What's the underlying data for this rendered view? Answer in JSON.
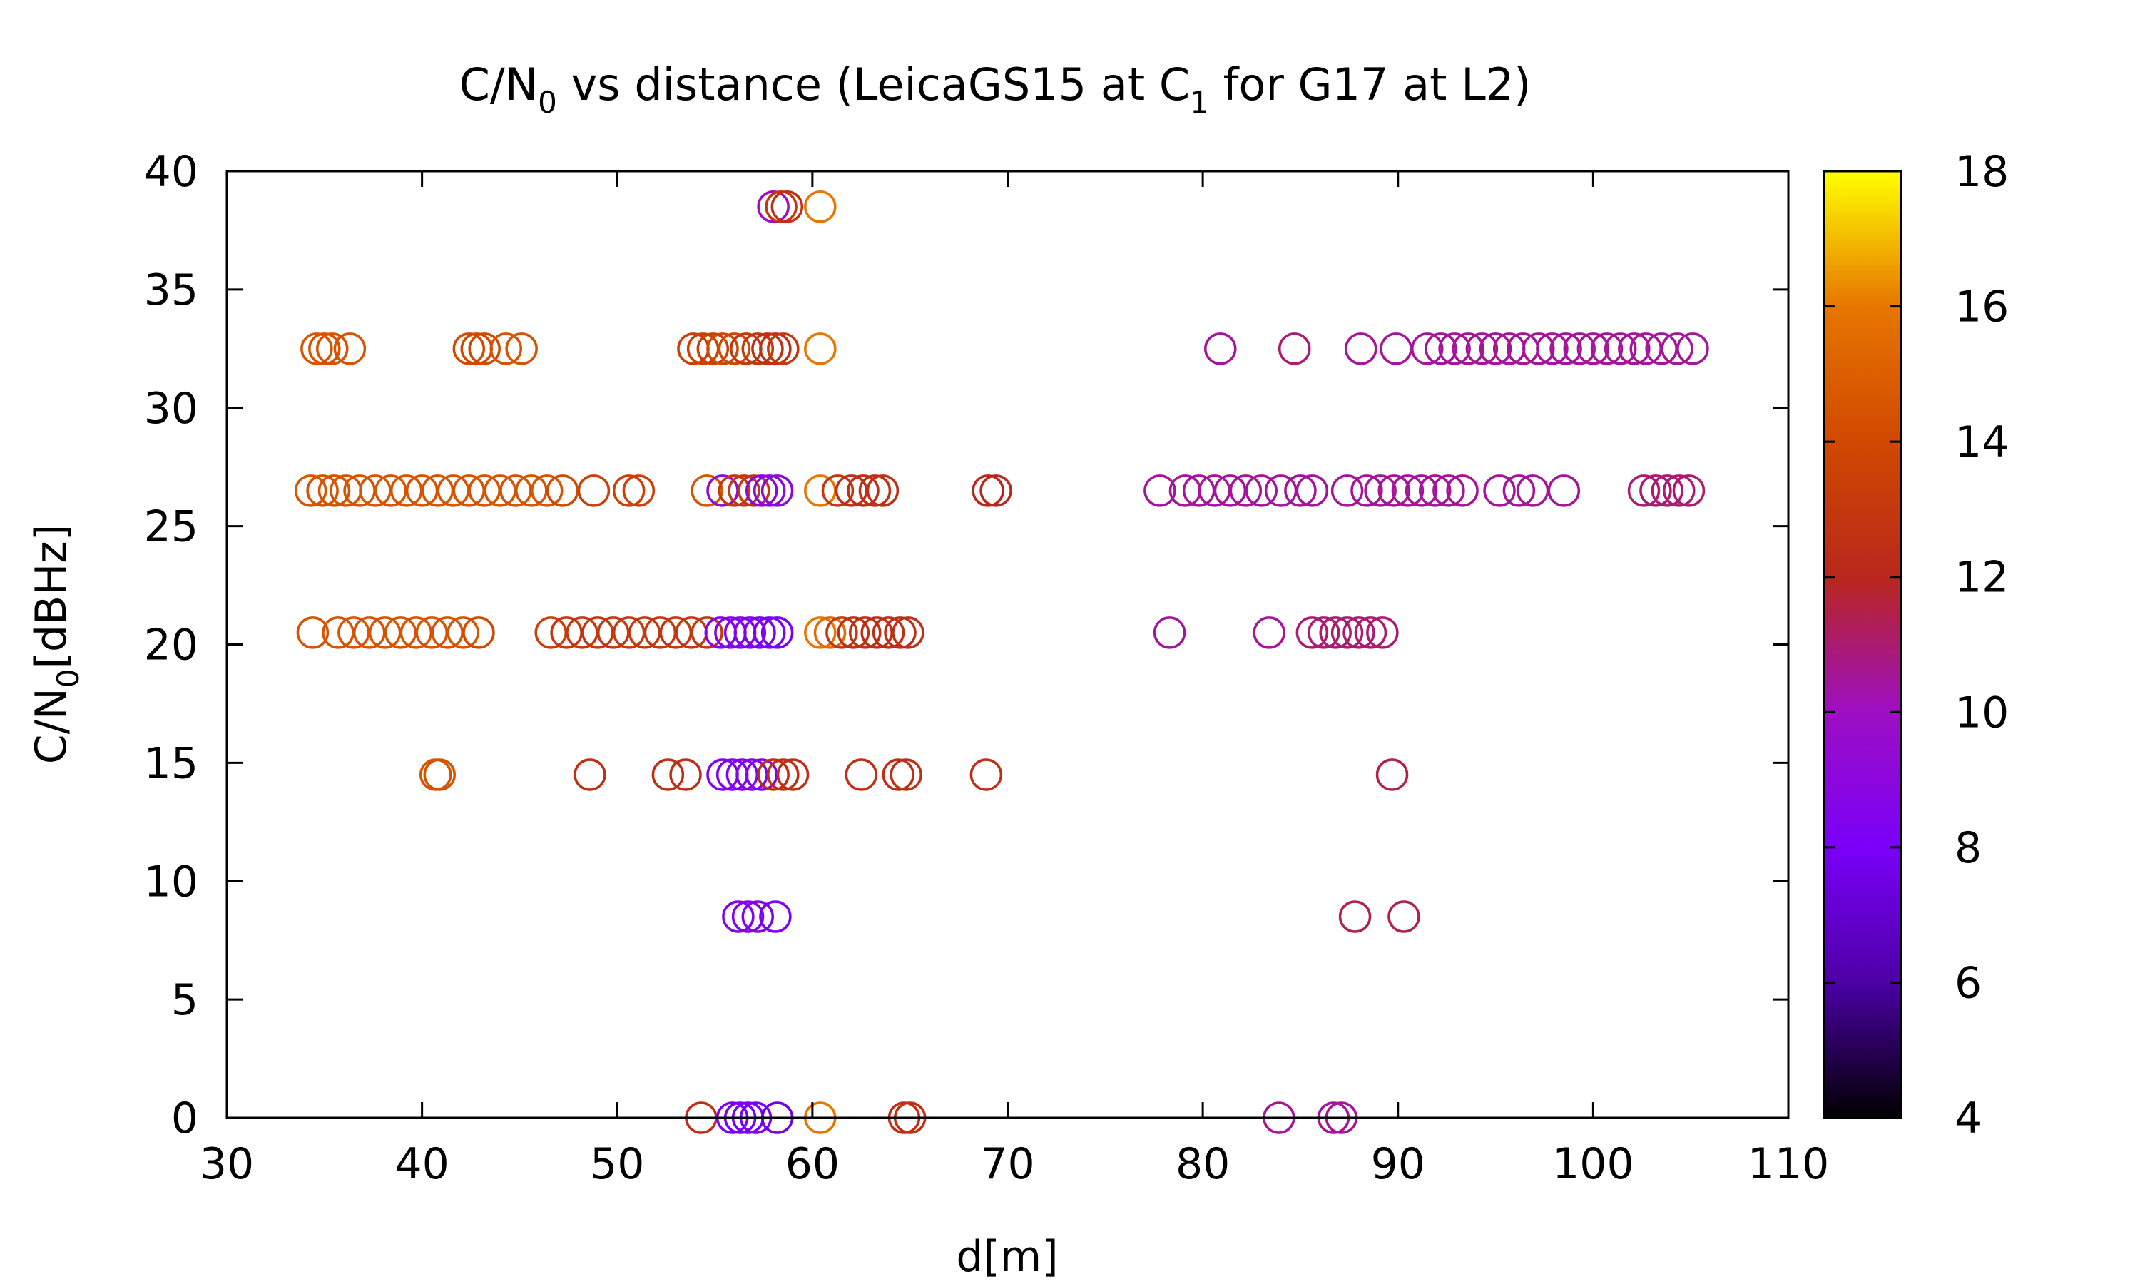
{
  "chart_data": {
    "type": "scatter",
    "title": {
      "pre": "C/N",
      "sub1": "0",
      "mid": " vs distance (LeicaGS15 at C",
      "sub2": "1",
      "post": " for G17 at L2)"
    },
    "xlabel": "d[m]",
    "ylabel": {
      "pre": "C/N",
      "sub": "0",
      "post": "[dBHz]"
    },
    "xlim": [
      30,
      110
    ],
    "ylim": [
      0,
      40
    ],
    "x_ticks": [
      "30",
      "40",
      "50",
      "60",
      "70",
      "80",
      "90",
      "100",
      "110"
    ],
    "y_ticks": [
      "0",
      "5",
      "10",
      "15",
      "20",
      "25",
      "30",
      "35",
      "40"
    ],
    "colorbar": {
      "range": [
        4,
        18
      ],
      "ticks": [
        "4",
        "6",
        "8",
        "10",
        "12",
        "14",
        "16",
        "18"
      ]
    },
    "marker": "open-circle",
    "grid": false,
    "points": [
      {
        "x": 58.0,
        "y": 38.5,
        "c": 10.0
      },
      {
        "x": 58.4,
        "y": 38.5,
        "c": 13.0
      },
      {
        "x": 58.7,
        "y": 38.5,
        "c": 12.5
      },
      {
        "x": 60.4,
        "y": 38.5,
        "c": 16.0
      },
      {
        "x": 34.6,
        "y": 32.5,
        "c": 14.5
      },
      {
        "x": 35.0,
        "y": 32.5,
        "c": 14.5
      },
      {
        "x": 35.4,
        "y": 32.5,
        "c": 14.5
      },
      {
        "x": 36.3,
        "y": 32.5,
        "c": 14.5
      },
      {
        "x": 42.4,
        "y": 32.5,
        "c": 14.0
      },
      {
        "x": 42.8,
        "y": 32.5,
        "c": 14.0
      },
      {
        "x": 43.2,
        "y": 32.5,
        "c": 14.0
      },
      {
        "x": 44.3,
        "y": 32.5,
        "c": 14.5
      },
      {
        "x": 45.1,
        "y": 32.5,
        "c": 14.5
      },
      {
        "x": 53.9,
        "y": 32.5,
        "c": 13.5
      },
      {
        "x": 54.4,
        "y": 32.5,
        "c": 13.5
      },
      {
        "x": 54.9,
        "y": 32.5,
        "c": 13.5
      },
      {
        "x": 55.4,
        "y": 32.5,
        "c": 14.0
      },
      {
        "x": 56.0,
        "y": 32.5,
        "c": 14.0
      },
      {
        "x": 56.6,
        "y": 32.5,
        "c": 13.0
      },
      {
        "x": 57.2,
        "y": 32.5,
        "c": 13.0
      },
      {
        "x": 57.7,
        "y": 32.5,
        "c": 12.5
      },
      {
        "x": 58.1,
        "y": 32.5,
        "c": 12.5
      },
      {
        "x": 58.5,
        "y": 32.5,
        "c": 13.0
      },
      {
        "x": 60.4,
        "y": 32.5,
        "c": 16.0
      },
      {
        "x": 80.9,
        "y": 32.5,
        "c": 10.5
      },
      {
        "x": 84.7,
        "y": 32.5,
        "c": 11.0
      },
      {
        "x": 88.1,
        "y": 32.5,
        "c": 10.5
      },
      {
        "x": 89.9,
        "y": 32.5,
        "c": 10.5
      },
      {
        "x": 91.5,
        "y": 32.5,
        "c": 10.5
      },
      {
        "x": 92.2,
        "y": 32.5,
        "c": 10.5
      },
      {
        "x": 92.9,
        "y": 32.5,
        "c": 10.5
      },
      {
        "x": 93.6,
        "y": 32.5,
        "c": 10.5
      },
      {
        "x": 94.3,
        "y": 32.5,
        "c": 10.5
      },
      {
        "x": 95.0,
        "y": 32.5,
        "c": 10.5
      },
      {
        "x": 95.7,
        "y": 32.5,
        "c": 10.5
      },
      {
        "x": 96.4,
        "y": 32.5,
        "c": 10.5
      },
      {
        "x": 97.2,
        "y": 32.5,
        "c": 10.5
      },
      {
        "x": 97.9,
        "y": 32.5,
        "c": 10.5
      },
      {
        "x": 98.6,
        "y": 32.5,
        "c": 10.5
      },
      {
        "x": 99.3,
        "y": 32.5,
        "c": 10.5
      },
      {
        "x": 100.0,
        "y": 32.5,
        "c": 10.5
      },
      {
        "x": 100.7,
        "y": 32.5,
        "c": 10.5
      },
      {
        "x": 101.4,
        "y": 32.5,
        "c": 10.5
      },
      {
        "x": 102.1,
        "y": 32.5,
        "c": 10.5
      },
      {
        "x": 102.7,
        "y": 32.5,
        "c": 10.5
      },
      {
        "x": 103.5,
        "y": 32.5,
        "c": 10.5
      },
      {
        "x": 104.3,
        "y": 32.5,
        "c": 10.5
      },
      {
        "x": 105.1,
        "y": 32.5,
        "c": 10.5
      },
      {
        "x": 34.3,
        "y": 26.5,
        "c": 14.5
      },
      {
        "x": 34.9,
        "y": 26.5,
        "c": 14.5
      },
      {
        "x": 35.5,
        "y": 26.5,
        "c": 14.5
      },
      {
        "x": 36.1,
        "y": 26.5,
        "c": 14.5
      },
      {
        "x": 36.8,
        "y": 26.5,
        "c": 14.5
      },
      {
        "x": 37.6,
        "y": 26.5,
        "c": 14.5
      },
      {
        "x": 38.4,
        "y": 26.5,
        "c": 14.5
      },
      {
        "x": 39.2,
        "y": 26.5,
        "c": 14.5
      },
      {
        "x": 40.0,
        "y": 26.5,
        "c": 14.5
      },
      {
        "x": 40.8,
        "y": 26.5,
        "c": 14.5
      },
      {
        "x": 41.6,
        "y": 26.5,
        "c": 14.5
      },
      {
        "x": 42.4,
        "y": 26.5,
        "c": 14.5
      },
      {
        "x": 43.2,
        "y": 26.5,
        "c": 14.5
      },
      {
        "x": 44.0,
        "y": 26.5,
        "c": 14.5
      },
      {
        "x": 44.8,
        "y": 26.5,
        "c": 14.5
      },
      {
        "x": 45.6,
        "y": 26.5,
        "c": 14.5
      },
      {
        "x": 46.4,
        "y": 26.5,
        "c": 14.5
      },
      {
        "x": 47.2,
        "y": 26.5,
        "c": 14.0
      },
      {
        "x": 48.8,
        "y": 26.5,
        "c": 13.5
      },
      {
        "x": 50.6,
        "y": 26.5,
        "c": 13.5
      },
      {
        "x": 51.1,
        "y": 26.5,
        "c": 13.5
      },
      {
        "x": 54.6,
        "y": 26.5,
        "c": 14.5
      },
      {
        "x": 55.4,
        "y": 26.5,
        "c": 9.5
      },
      {
        "x": 56.0,
        "y": 26.5,
        "c": 13.0
      },
      {
        "x": 56.5,
        "y": 26.5,
        "c": 13.0
      },
      {
        "x": 57.0,
        "y": 26.5,
        "c": 13.0
      },
      {
        "x": 57.4,
        "y": 26.5,
        "c": 9.0
      },
      {
        "x": 57.8,
        "y": 26.5,
        "c": 9.0
      },
      {
        "x": 58.2,
        "y": 26.5,
        "c": 9.0
      },
      {
        "x": 60.4,
        "y": 26.5,
        "c": 16.0
      },
      {
        "x": 61.3,
        "y": 26.5,
        "c": 13.0
      },
      {
        "x": 62.0,
        "y": 26.5,
        "c": 12.5
      },
      {
        "x": 62.6,
        "y": 26.5,
        "c": 12.5
      },
      {
        "x": 63.2,
        "y": 26.5,
        "c": 12.5
      },
      {
        "x": 63.6,
        "y": 26.5,
        "c": 12.5
      },
      {
        "x": 69.0,
        "y": 26.5,
        "c": 12.0
      },
      {
        "x": 69.4,
        "y": 26.5,
        "c": 12.0
      },
      {
        "x": 77.8,
        "y": 26.5,
        "c": 10.5
      },
      {
        "x": 79.1,
        "y": 26.5,
        "c": 10.5
      },
      {
        "x": 79.8,
        "y": 26.5,
        "c": 10.5
      },
      {
        "x": 80.6,
        "y": 26.5,
        "c": 10.5
      },
      {
        "x": 81.4,
        "y": 26.5,
        "c": 10.5
      },
      {
        "x": 82.2,
        "y": 26.5,
        "c": 10.5
      },
      {
        "x": 83.0,
        "y": 26.5,
        "c": 10.5
      },
      {
        "x": 84.0,
        "y": 26.5,
        "c": 10.5
      },
      {
        "x": 85.0,
        "y": 26.5,
        "c": 10.5
      },
      {
        "x": 85.6,
        "y": 26.5,
        "c": 10.5
      },
      {
        "x": 87.4,
        "y": 26.5,
        "c": 10.5
      },
      {
        "x": 88.4,
        "y": 26.5,
        "c": 10.5
      },
      {
        "x": 89.1,
        "y": 26.5,
        "c": 10.5
      },
      {
        "x": 89.8,
        "y": 26.5,
        "c": 10.5
      },
      {
        "x": 90.5,
        "y": 26.5,
        "c": 10.5
      },
      {
        "x": 91.2,
        "y": 26.5,
        "c": 10.5
      },
      {
        "x": 91.9,
        "y": 26.5,
        "c": 10.5
      },
      {
        "x": 92.6,
        "y": 26.5,
        "c": 10.5
      },
      {
        "x": 93.3,
        "y": 26.5,
        "c": 10.5
      },
      {
        "x": 95.2,
        "y": 26.5,
        "c": 10.5
      },
      {
        "x": 96.2,
        "y": 26.5,
        "c": 10.5
      },
      {
        "x": 96.9,
        "y": 26.5,
        "c": 10.5
      },
      {
        "x": 98.5,
        "y": 26.5,
        "c": 10.5
      },
      {
        "x": 102.6,
        "y": 26.5,
        "c": 11.0
      },
      {
        "x": 103.2,
        "y": 26.5,
        "c": 11.0
      },
      {
        "x": 103.8,
        "y": 26.5,
        "c": 11.0
      },
      {
        "x": 104.4,
        "y": 26.5,
        "c": 11.0
      },
      {
        "x": 104.9,
        "y": 26.5,
        "c": 11.0
      },
      {
        "x": 34.4,
        "y": 20.5,
        "c": 14.5
      },
      {
        "x": 35.7,
        "y": 20.5,
        "c": 14.5
      },
      {
        "x": 36.5,
        "y": 20.5,
        "c": 14.5
      },
      {
        "x": 37.3,
        "y": 20.5,
        "c": 14.5
      },
      {
        "x": 38.1,
        "y": 20.5,
        "c": 14.5
      },
      {
        "x": 38.9,
        "y": 20.5,
        "c": 14.5
      },
      {
        "x": 39.7,
        "y": 20.5,
        "c": 14.5
      },
      {
        "x": 40.5,
        "y": 20.5,
        "c": 14.5
      },
      {
        "x": 41.3,
        "y": 20.5,
        "c": 14.5
      },
      {
        "x": 42.1,
        "y": 20.5,
        "c": 14.5
      },
      {
        "x": 42.9,
        "y": 20.5,
        "c": 14.0
      },
      {
        "x": 46.6,
        "y": 20.5,
        "c": 13.5
      },
      {
        "x": 47.4,
        "y": 20.5,
        "c": 13.0
      },
      {
        "x": 48.2,
        "y": 20.5,
        "c": 13.0
      },
      {
        "x": 49.0,
        "y": 20.5,
        "c": 13.0
      },
      {
        "x": 49.8,
        "y": 20.5,
        "c": 13.0
      },
      {
        "x": 50.6,
        "y": 20.5,
        "c": 13.0
      },
      {
        "x": 51.4,
        "y": 20.5,
        "c": 13.0
      },
      {
        "x": 52.2,
        "y": 20.5,
        "c": 13.0
      },
      {
        "x": 53.0,
        "y": 20.5,
        "c": 13.0
      },
      {
        "x": 53.8,
        "y": 20.5,
        "c": 13.0
      },
      {
        "x": 54.6,
        "y": 20.5,
        "c": 13.0
      },
      {
        "x": 55.3,
        "y": 20.5,
        "c": 8.5
      },
      {
        "x": 55.8,
        "y": 20.5,
        "c": 8.5
      },
      {
        "x": 56.3,
        "y": 20.5,
        "c": 8.5
      },
      {
        "x": 56.8,
        "y": 20.5,
        "c": 8.5
      },
      {
        "x": 57.3,
        "y": 20.5,
        "c": 8.0
      },
      {
        "x": 57.8,
        "y": 20.5,
        "c": 8.0
      },
      {
        "x": 58.2,
        "y": 20.5,
        "c": 8.0
      },
      {
        "x": 60.4,
        "y": 20.5,
        "c": 16.0
      },
      {
        "x": 60.9,
        "y": 20.5,
        "c": 15.5
      },
      {
        "x": 61.5,
        "y": 20.5,
        "c": 13.0
      },
      {
        "x": 62.1,
        "y": 20.5,
        "c": 12.5
      },
      {
        "x": 62.7,
        "y": 20.5,
        "c": 12.5
      },
      {
        "x": 63.3,
        "y": 20.5,
        "c": 12.5
      },
      {
        "x": 63.9,
        "y": 20.5,
        "c": 12.5
      },
      {
        "x": 64.5,
        "y": 20.5,
        "c": 12.5
      },
      {
        "x": 64.9,
        "y": 20.5,
        "c": 12.5
      },
      {
        "x": 78.3,
        "y": 20.5,
        "c": 10.5
      },
      {
        "x": 83.4,
        "y": 20.5,
        "c": 10.5
      },
      {
        "x": 85.6,
        "y": 20.5,
        "c": 11.0
      },
      {
        "x": 86.2,
        "y": 20.5,
        "c": 11.0
      },
      {
        "x": 86.8,
        "y": 20.5,
        "c": 11.0
      },
      {
        "x": 87.4,
        "y": 20.5,
        "c": 11.0
      },
      {
        "x": 88.0,
        "y": 20.5,
        "c": 11.0
      },
      {
        "x": 88.6,
        "y": 20.5,
        "c": 11.0
      },
      {
        "x": 89.2,
        "y": 20.5,
        "c": 11.0
      },
      {
        "x": 40.7,
        "y": 14.5,
        "c": 14.5
      },
      {
        "x": 40.9,
        "y": 14.5,
        "c": 14.5
      },
      {
        "x": 48.6,
        "y": 14.5,
        "c": 12.5
      },
      {
        "x": 52.6,
        "y": 14.5,
        "c": 12.5
      },
      {
        "x": 53.5,
        "y": 14.5,
        "c": 12.5
      },
      {
        "x": 55.4,
        "y": 14.5,
        "c": 8.5
      },
      {
        "x": 55.9,
        "y": 14.5,
        "c": 8.5
      },
      {
        "x": 56.4,
        "y": 14.5,
        "c": 8.5
      },
      {
        "x": 56.9,
        "y": 14.5,
        "c": 8.5
      },
      {
        "x": 57.4,
        "y": 14.5,
        "c": 8.5
      },
      {
        "x": 58.0,
        "y": 14.5,
        "c": 12.5
      },
      {
        "x": 58.5,
        "y": 14.5,
        "c": 12.5
      },
      {
        "x": 59.0,
        "y": 14.5,
        "c": 12.5
      },
      {
        "x": 62.5,
        "y": 14.5,
        "c": 12.5
      },
      {
        "x": 64.4,
        "y": 14.5,
        "c": 12.5
      },
      {
        "x": 64.8,
        "y": 14.5,
        "c": 12.5
      },
      {
        "x": 68.9,
        "y": 14.5,
        "c": 12.5
      },
      {
        "x": 89.7,
        "y": 14.5,
        "c": 11.5
      },
      {
        "x": 56.2,
        "y": 8.5,
        "c": 8.5
      },
      {
        "x": 56.7,
        "y": 8.5,
        "c": 8.5
      },
      {
        "x": 57.2,
        "y": 8.5,
        "c": 8.5
      },
      {
        "x": 58.1,
        "y": 8.5,
        "c": 8.0
      },
      {
        "x": 87.8,
        "y": 8.5,
        "c": 11.5
      },
      {
        "x": 90.3,
        "y": 8.5,
        "c": 11.5
      },
      {
        "x": 54.3,
        "y": 0,
        "c": 12.5
      },
      {
        "x": 55.9,
        "y": 0,
        "c": 8.0
      },
      {
        "x": 56.3,
        "y": 0,
        "c": 8.0
      },
      {
        "x": 56.7,
        "y": 0,
        "c": 8.0
      },
      {
        "x": 57.1,
        "y": 0,
        "c": 8.0
      },
      {
        "x": 58.2,
        "y": 0,
        "c": 7.5
      },
      {
        "x": 60.4,
        "y": 0,
        "c": 16.0
      },
      {
        "x": 64.7,
        "y": 0,
        "c": 12.5
      },
      {
        "x": 65.0,
        "y": 0,
        "c": 12.5
      },
      {
        "x": 83.9,
        "y": 0,
        "c": 10.5
      },
      {
        "x": 86.7,
        "y": 0,
        "c": 10.5
      },
      {
        "x": 87.1,
        "y": 0,
        "c": 10.5
      }
    ]
  }
}
